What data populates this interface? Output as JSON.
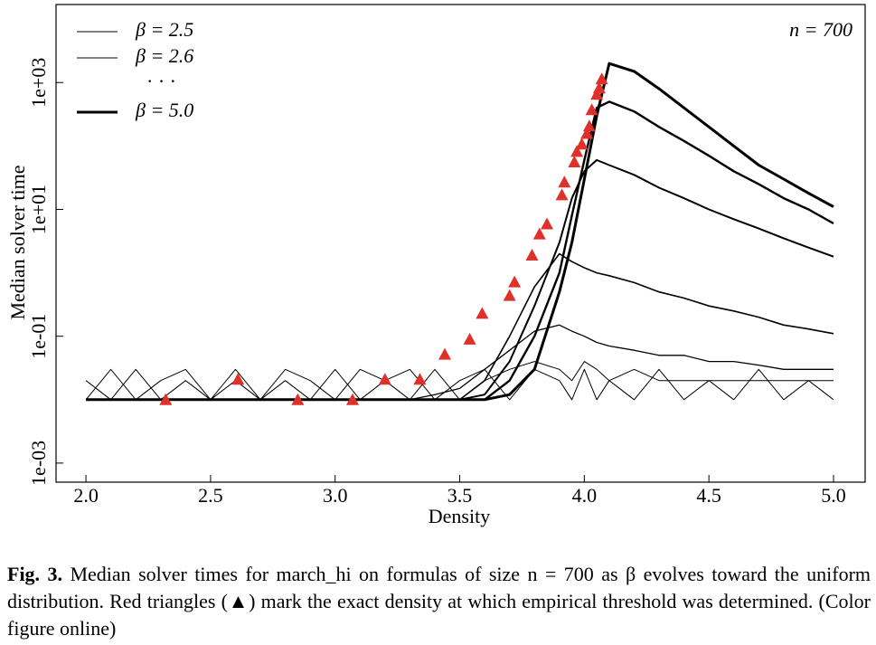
{
  "chart_data": {
    "type": "line",
    "y_label": "Median solver time",
    "x_label": "Density",
    "annotation": "n = 700",
    "legend_ellipsis": "· · ·",
    "x": [
      2.0,
      2.1,
      2.2,
      2.3,
      2.4,
      2.5,
      2.6,
      2.7,
      2.8,
      2.9,
      3.0,
      3.1,
      3.2,
      3.3,
      3.4,
      3.5,
      3.6,
      3.7,
      3.8,
      3.9,
      3.95,
      4.0,
      4.05,
      4.1,
      4.2,
      4.3,
      4.4,
      4.5,
      4.6,
      4.7,
      4.8,
      4.9,
      5.0
    ],
    "series": [
      {
        "name": "β = 2.5",
        "color": "#000000",
        "width": 1,
        "values": [
          0.02,
          0.01,
          0.03,
          0.01,
          0.02,
          0.01,
          0.03,
          0.01,
          0.02,
          0.01,
          0.03,
          0.01,
          0.02,
          0.03,
          0.01,
          0.02,
          0.03,
          0.01,
          0.03,
          0.02,
          0.01,
          0.03,
          0.01,
          0.02,
          0.01,
          0.03,
          0.01,
          0.02,
          0.01,
          0.03,
          0.01,
          0.02,
          0.01
        ]
      },
      {
        "name": "β = 2.6",
        "color": "#000000",
        "width": 1,
        "values": [
          0.01,
          0.03,
          0.01,
          0.02,
          0.03,
          0.01,
          0.02,
          0.01,
          0.03,
          0.02,
          0.01,
          0.03,
          0.02,
          0.01,
          0.03,
          0.01,
          0.02,
          0.03,
          0.04,
          0.03,
          0.02,
          0.04,
          0.03,
          0.02,
          0.03,
          0.02,
          0.02,
          0.02,
          0.02,
          0.02,
          0.02,
          0.02,
          0.02
        ]
      },
      {
        "color": "#000000",
        "width": 1.3,
        "values": [
          0.01,
          0.01,
          0.01,
          0.01,
          0.01,
          0.01,
          0.01,
          0.01,
          0.01,
          0.01,
          0.01,
          0.01,
          0.01,
          0.01,
          0.012,
          0.015,
          0.03,
          0.06,
          0.12,
          0.15,
          0.12,
          0.1,
          0.08,
          0.07,
          0.06,
          0.05,
          0.05,
          0.04,
          0.04,
          0.035,
          0.03,
          0.03,
          0.03
        ]
      },
      {
        "color": "#000000",
        "width": 1.6,
        "values": [
          0.01,
          0.01,
          0.01,
          0.01,
          0.01,
          0.01,
          0.01,
          0.01,
          0.01,
          0.01,
          0.01,
          0.01,
          0.01,
          0.01,
          0.01,
          0.01,
          0.02,
          0.1,
          0.6,
          2,
          1.5,
          1.2,
          1,
          0.9,
          0.7,
          0.5,
          0.4,
          0.3,
          0.25,
          0.2,
          0.15,
          0.13,
          0.11
        ]
      },
      {
        "color": "#000000",
        "width": 2,
        "values": [
          0.01,
          0.01,
          0.01,
          0.01,
          0.01,
          0.01,
          0.01,
          0.01,
          0.01,
          0.01,
          0.01,
          0.01,
          0.01,
          0.01,
          0.01,
          0.01,
          0.012,
          0.04,
          0.3,
          3,
          15,
          40,
          60,
          50,
          35,
          22,
          15,
          10,
          7,
          5,
          3.5,
          2.5,
          1.8
        ]
      },
      {
        "color": "#000000",
        "width": 2.4,
        "values": [
          0.01,
          0.01,
          0.01,
          0.01,
          0.01,
          0.01,
          0.01,
          0.01,
          0.01,
          0.01,
          0.01,
          0.01,
          0.01,
          0.01,
          0.01,
          0.01,
          0.01,
          0.02,
          0.1,
          1,
          8,
          60,
          400,
          500,
          350,
          200,
          120,
          70,
          40,
          25,
          15,
          10,
          6
        ]
      },
      {
        "name": "β = 5.0",
        "color": "#000000",
        "width": 3,
        "values": [
          0.01,
          0.01,
          0.01,
          0.01,
          0.01,
          0.01,
          0.01,
          0.01,
          0.01,
          0.01,
          0.01,
          0.01,
          0.01,
          0.01,
          0.01,
          0.01,
          0.01,
          0.012,
          0.03,
          0.5,
          3,
          30,
          300,
          2000,
          1500,
          800,
          400,
          200,
          100,
          50,
          30,
          18,
          11
        ]
      }
    ],
    "thresholds": {
      "color": "#e0302a",
      "x": [
        2.32,
        2.61,
        2.85,
        3.07,
        3.2,
        3.34,
        3.44,
        3.54,
        3.59,
        3.7,
        3.72,
        3.79,
        3.82,
        3.85,
        3.91,
        3.92,
        3.96,
        3.97,
        3.99,
        4.01,
        4.02,
        4.03,
        4.05,
        4.06,
        4.07
      ],
      "y": [
        0.01,
        0.021,
        0.01,
        0.01,
        0.021,
        0.021,
        0.052,
        0.09,
        0.23,
        0.44,
        0.72,
        1.9,
        4.1,
        5.9,
        17,
        27,
        56,
        82,
        107,
        158,
        207,
        373,
        652,
        820,
        1140
      ]
    },
    "log_y": true,
    "xlim": [
      1.88,
      5.127
    ],
    "ylim": [
      0.0005,
      17000
    ],
    "xticks": [
      {
        "value": 2,
        "label": "2.0"
      },
      {
        "value": 2.5,
        "label": "2.5"
      },
      {
        "value": 3,
        "label": "3.0"
      },
      {
        "value": 3.5,
        "label": "3.5"
      },
      {
        "value": 4,
        "label": "4.0"
      },
      {
        "value": 4.5,
        "label": "4.5"
      },
      {
        "value": 5,
        "label": "5.0"
      }
    ],
    "yticks": [
      {
        "value": 0.001,
        "label": "1e-03"
      },
      {
        "value": 0.1,
        "label": "1e-01"
      },
      {
        "value": 10,
        "label": "1e+01"
      },
      {
        "value": 1000,
        "label": "1e+03"
      }
    ]
  },
  "caption": {
    "label": "Fig. 3.",
    "text": "Median solver times for march_hi on formulas of size n = 700 as β evolves toward the uniform distribution. Red triangles (▲) mark the exact density at which empirical threshold was determined. (Color figure online)"
  }
}
